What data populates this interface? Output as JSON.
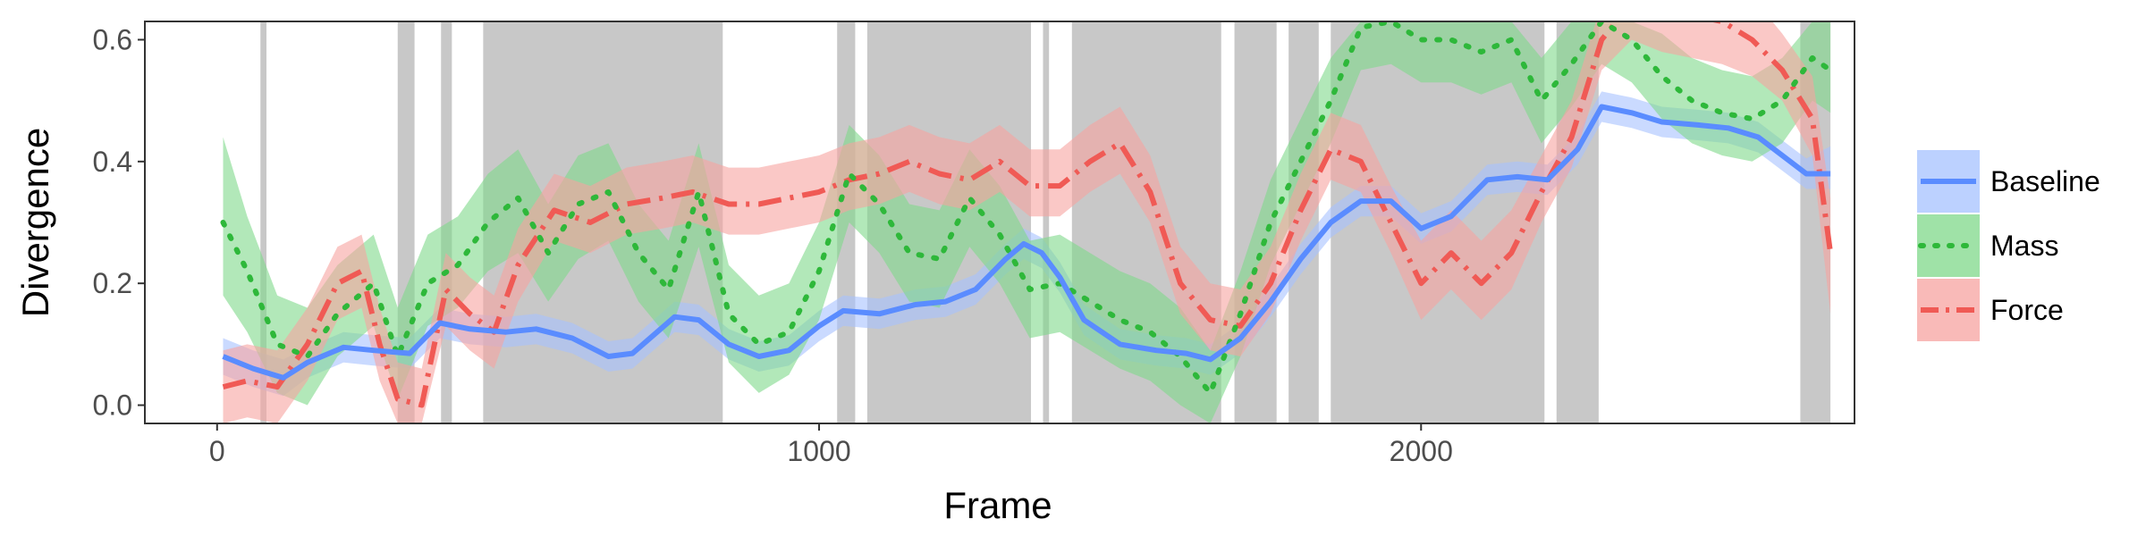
{
  "chart_data": {
    "type": "line",
    "title": "",
    "xlabel": "Frame",
    "ylabel": "Divergence",
    "xlim": [
      -120,
      2720
    ],
    "ylim": [
      -0.03,
      0.63
    ],
    "xticks": [
      0,
      1000,
      2000
    ],
    "yticks": [
      0.0,
      0.2,
      0.4,
      0.6
    ],
    "ytick_labels": [
      "0.0",
      "0.2",
      "0.4",
      "0.6"
    ],
    "grid": false,
    "legend_position": "right",
    "shaded_frame_ranges": [
      [
        72,
        82
      ],
      [
        300,
        328
      ],
      [
        372,
        390
      ],
      [
        442,
        840
      ],
      [
        1030,
        1060
      ],
      [
        1080,
        1352
      ],
      [
        1372,
        1382
      ],
      [
        1420,
        1668
      ],
      [
        1690,
        1760
      ],
      [
        1780,
        1830
      ],
      [
        1850,
        2205
      ],
      [
        2225,
        2295
      ],
      [
        2630,
        2680
      ]
    ],
    "series": [
      {
        "name": "Baseline",
        "style": "solid",
        "color": "#5a8cff",
        "band_color": "#a6c1ff",
        "x": [
          10,
          60,
          110,
          150,
          210,
          260,
          320,
          370,
          420,
          480,
          530,
          590,
          650,
          690,
          760,
          800,
          850,
          900,
          950,
          1000,
          1040,
          1100,
          1160,
          1210,
          1260,
          1310,
          1340,
          1370,
          1400,
          1440,
          1500,
          1560,
          1610,
          1650,
          1700,
          1750,
          1800,
          1850,
          1900,
          1950,
          2000,
          2050,
          2110,
          2160,
          2210,
          2260,
          2300,
          2350,
          2400,
          2460,
          2510,
          2560,
          2600,
          2640,
          2680
        ],
        "y": [
          0.08,
          0.06,
          0.045,
          0.07,
          0.095,
          0.09,
          0.085,
          0.135,
          0.125,
          0.12,
          0.125,
          0.11,
          0.08,
          0.085,
          0.145,
          0.14,
          0.1,
          0.08,
          0.09,
          0.13,
          0.155,
          0.15,
          0.165,
          0.17,
          0.19,
          0.24,
          0.265,
          0.25,
          0.21,
          0.14,
          0.1,
          0.09,
          0.085,
          0.075,
          0.11,
          0.17,
          0.24,
          0.3,
          0.335,
          0.335,
          0.29,
          0.31,
          0.37,
          0.375,
          0.37,
          0.42,
          0.49,
          0.48,
          0.465,
          0.46,
          0.455,
          0.44,
          0.41,
          0.38,
          0.38
        ],
        "lower": [
          0.05,
          0.03,
          0.015,
          0.045,
          0.07,
          0.065,
          0.06,
          0.11,
          0.1,
          0.095,
          0.1,
          0.085,
          0.055,
          0.06,
          0.12,
          0.115,
          0.075,
          0.055,
          0.065,
          0.105,
          0.13,
          0.125,
          0.14,
          0.145,
          0.165,
          0.215,
          0.24,
          0.225,
          0.185,
          0.115,
          0.075,
          0.065,
          0.06,
          0.05,
          0.085,
          0.145,
          0.215,
          0.275,
          0.31,
          0.31,
          0.265,
          0.285,
          0.345,
          0.35,
          0.345,
          0.395,
          0.465,
          0.455,
          0.44,
          0.435,
          0.43,
          0.415,
          0.385,
          0.355,
          0.355
        ],
        "upper": [
          0.11,
          0.09,
          0.075,
          0.095,
          0.12,
          0.115,
          0.11,
          0.16,
          0.15,
          0.145,
          0.15,
          0.135,
          0.105,
          0.11,
          0.17,
          0.165,
          0.125,
          0.105,
          0.115,
          0.155,
          0.18,
          0.175,
          0.19,
          0.195,
          0.215,
          0.265,
          0.29,
          0.275,
          0.235,
          0.165,
          0.125,
          0.115,
          0.11,
          0.1,
          0.135,
          0.195,
          0.265,
          0.325,
          0.36,
          0.36,
          0.315,
          0.335,
          0.395,
          0.4,
          0.395,
          0.445,
          0.515,
          0.505,
          0.49,
          0.485,
          0.48,
          0.465,
          0.435,
          0.405,
          0.425
        ]
      },
      {
        "name": "Mass",
        "style": "dotted",
        "color": "#2eb83a",
        "band_color": "#7fd88a",
        "x": [
          10,
          50,
          100,
          150,
          200,
          260,
          300,
          350,
          400,
          450,
          500,
          550,
          600,
          650,
          700,
          750,
          800,
          850,
          900,
          950,
          1000,
          1050,
          1100,
          1150,
          1200,
          1250,
          1300,
          1350,
          1400,
          1450,
          1500,
          1550,
          1600,
          1650,
          1700,
          1750,
          1800,
          1850,
          1900,
          1950,
          2000,
          2050,
          2100,
          2150,
          2200,
          2250,
          2300,
          2350,
          2400,
          2450,
          2500,
          2550,
          2600,
          2650,
          2680
        ],
        "y": [
          0.3,
          0.22,
          0.1,
          0.08,
          0.15,
          0.2,
          0.08,
          0.2,
          0.23,
          0.3,
          0.34,
          0.25,
          0.33,
          0.35,
          0.25,
          0.19,
          0.35,
          0.15,
          0.1,
          0.12,
          0.22,
          0.38,
          0.33,
          0.25,
          0.24,
          0.34,
          0.28,
          0.19,
          0.2,
          0.17,
          0.14,
          0.12,
          0.08,
          0.02,
          0.15,
          0.3,
          0.4,
          0.5,
          0.62,
          0.63,
          0.6,
          0.6,
          0.58,
          0.6,
          0.5,
          0.56,
          0.63,
          0.6,
          0.54,
          0.5,
          0.48,
          0.47,
          0.5,
          0.57,
          0.55
        ],
        "lower": [
          0.18,
          0.12,
          0.02,
          0.0,
          0.08,
          0.13,
          0.01,
          0.13,
          0.16,
          0.22,
          0.25,
          0.17,
          0.24,
          0.27,
          0.17,
          0.11,
          0.26,
          0.07,
          0.02,
          0.05,
          0.14,
          0.3,
          0.25,
          0.17,
          0.16,
          0.26,
          0.2,
          0.11,
          0.12,
          0.09,
          0.06,
          0.04,
          0.0,
          -0.03,
          0.08,
          0.23,
          0.33,
          0.43,
          0.55,
          0.56,
          0.53,
          0.53,
          0.51,
          0.53,
          0.43,
          0.49,
          0.56,
          0.53,
          0.47,
          0.43,
          0.41,
          0.4,
          0.43,
          0.5,
          0.48
        ],
        "upper": [
          0.44,
          0.31,
          0.18,
          0.16,
          0.23,
          0.28,
          0.16,
          0.28,
          0.31,
          0.38,
          0.42,
          0.33,
          0.41,
          0.43,
          0.33,
          0.27,
          0.43,
          0.23,
          0.18,
          0.2,
          0.3,
          0.46,
          0.41,
          0.33,
          0.32,
          0.42,
          0.36,
          0.27,
          0.28,
          0.25,
          0.22,
          0.2,
          0.16,
          0.09,
          0.22,
          0.37,
          0.47,
          0.57,
          0.63,
          0.63,
          0.63,
          0.63,
          0.63,
          0.63,
          0.57,
          0.63,
          0.63,
          0.63,
          0.61,
          0.57,
          0.55,
          0.54,
          0.57,
          0.63,
          0.63
        ]
      },
      {
        "name": "Force",
        "style": "dashdot",
        "color": "#f05a55",
        "band_color": "#f7a3a0",
        "x": [
          10,
          50,
          100,
          150,
          200,
          240,
          270,
          300,
          340,
          380,
          420,
          460,
          500,
          560,
          620,
          680,
          740,
          790,
          850,
          900,
          950,
          1000,
          1050,
          1100,
          1150,
          1200,
          1250,
          1300,
          1350,
          1400,
          1450,
          1500,
          1550,
          1600,
          1650,
          1700,
          1750,
          1800,
          1850,
          1900,
          1950,
          2000,
          2050,
          2100,
          2150,
          2200,
          2250,
          2300,
          2350,
          2400,
          2450,
          2500,
          2550,
          2600,
          2650,
          2680
        ],
        "y": [
          0.03,
          0.04,
          0.03,
          0.1,
          0.2,
          0.22,
          0.1,
          0.01,
          0.0,
          0.19,
          0.15,
          0.12,
          0.23,
          0.32,
          0.3,
          0.33,
          0.34,
          0.35,
          0.33,
          0.33,
          0.34,
          0.35,
          0.37,
          0.38,
          0.4,
          0.38,
          0.37,
          0.4,
          0.36,
          0.36,
          0.4,
          0.43,
          0.35,
          0.2,
          0.14,
          0.13,
          0.2,
          0.32,
          0.42,
          0.4,
          0.3,
          0.2,
          0.25,
          0.2,
          0.25,
          0.35,
          0.44,
          0.6,
          0.66,
          0.66,
          0.64,
          0.63,
          0.6,
          0.55,
          0.47,
          0.25
        ],
        "lower": [
          -0.03,
          -0.02,
          -0.03,
          0.04,
          0.14,
          0.16,
          0.04,
          -0.03,
          -0.03,
          0.13,
          0.09,
          0.06,
          0.17,
          0.27,
          0.25,
          0.28,
          0.29,
          0.3,
          0.28,
          0.28,
          0.29,
          0.3,
          0.32,
          0.33,
          0.35,
          0.33,
          0.32,
          0.35,
          0.31,
          0.31,
          0.35,
          0.38,
          0.3,
          0.15,
          0.09,
          0.08,
          0.15,
          0.27,
          0.37,
          0.35,
          0.25,
          0.14,
          0.19,
          0.14,
          0.19,
          0.3,
          0.39,
          0.55,
          0.6,
          0.58,
          0.57,
          0.56,
          0.54,
          0.5,
          0.41,
          0.15
        ],
        "upper": [
          0.09,
          0.1,
          0.09,
          0.16,
          0.26,
          0.28,
          0.16,
          0.07,
          0.06,
          0.25,
          0.21,
          0.18,
          0.29,
          0.38,
          0.36,
          0.39,
          0.4,
          0.41,
          0.39,
          0.39,
          0.4,
          0.41,
          0.43,
          0.44,
          0.46,
          0.44,
          0.43,
          0.46,
          0.42,
          0.42,
          0.46,
          0.49,
          0.41,
          0.26,
          0.2,
          0.19,
          0.26,
          0.38,
          0.48,
          0.46,
          0.36,
          0.27,
          0.32,
          0.27,
          0.32,
          0.41,
          0.5,
          0.66,
          0.7,
          0.7,
          0.7,
          0.7,
          0.67,
          0.61,
          0.54,
          0.34
        ]
      }
    ]
  }
}
